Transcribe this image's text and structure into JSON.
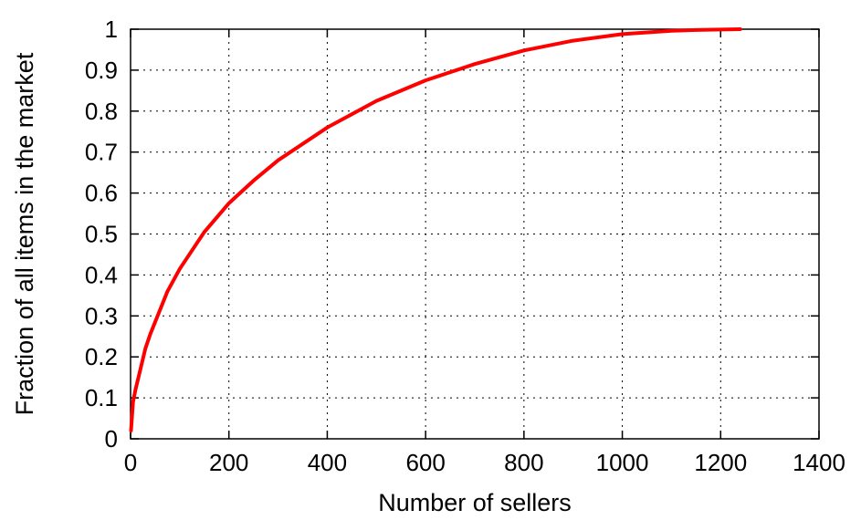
{
  "chart_data": {
    "type": "line",
    "title": "",
    "xlabel": "Number of sellers",
    "ylabel": "Fraction of all items in the market",
    "xlim": [
      0,
      1400
    ],
    "ylim": [
      0,
      1
    ],
    "xticks": [
      0,
      200,
      400,
      600,
      800,
      1000,
      1200,
      1400
    ],
    "yticks": [
      0,
      0.1,
      0.2,
      0.3,
      0.4,
      0.5,
      0.6,
      0.7,
      0.8,
      0.9,
      1
    ],
    "xtick_labels": [
      "0",
      "200",
      "400",
      "600",
      "800",
      "1000",
      "1200",
      "1400"
    ],
    "ytick_labels": [
      "0",
      "0.1",
      "0.2",
      "0.3",
      "0.4",
      "0.5",
      "0.6",
      "0.7",
      "0.8",
      "0.9",
      "1"
    ],
    "grid": true,
    "legend": "none",
    "series": [
      {
        "color": "#ff0000",
        "x": [
          1,
          5,
          10,
          20,
          30,
          40,
          50,
          75,
          100,
          150,
          200,
          250,
          300,
          400,
          500,
          600,
          700,
          800,
          900,
          1000,
          1100,
          1150,
          1200,
          1240
        ],
        "y": [
          0.02,
          0.09,
          0.12,
          0.17,
          0.22,
          0.255,
          0.285,
          0.36,
          0.415,
          0.505,
          0.575,
          0.63,
          0.68,
          0.76,
          0.825,
          0.875,
          0.915,
          0.948,
          0.972,
          0.988,
          0.996,
          0.998,
          0.999,
          1.0
        ]
      }
    ]
  }
}
